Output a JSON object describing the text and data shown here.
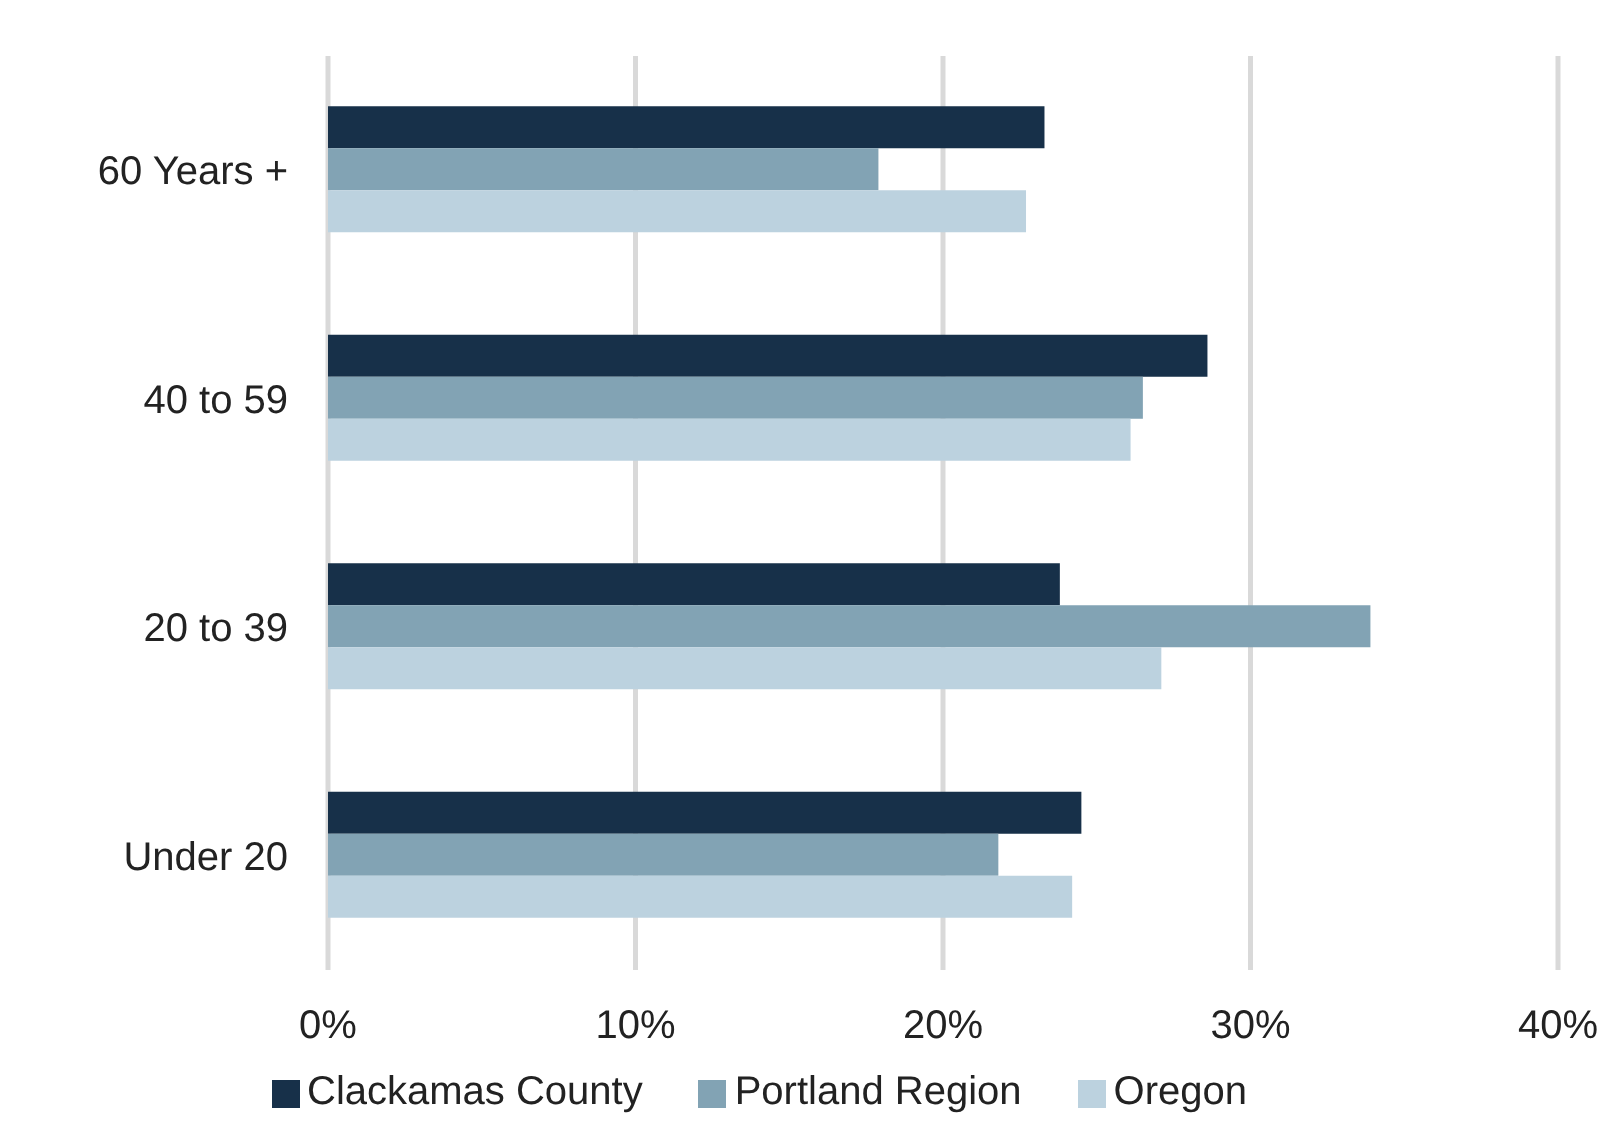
{
  "chart_data": {
    "type": "bar",
    "orientation": "horizontal",
    "categories": [
      "60 Years +",
      "40 to 59",
      "20 to 39",
      "Under 20"
    ],
    "series": [
      {
        "name": "Clackamas County",
        "color": "#173049",
        "values": [
          23.3,
          28.6,
          23.8,
          24.5
        ]
      },
      {
        "name": "Portland Region",
        "color": "#82a3b4",
        "values": [
          17.9,
          26.5,
          33.9,
          21.8
        ]
      },
      {
        "name": "Oregon",
        "color": "#bcd2df",
        "values": [
          22.7,
          26.1,
          27.1,
          24.2
        ]
      }
    ],
    "xlim": [
      0,
      40
    ],
    "xticks": [
      {
        "value": 0,
        "label": "0%"
      },
      {
        "value": 10,
        "label": "10%"
      },
      {
        "value": 20,
        "label": "20%"
      },
      {
        "value": 30,
        "label": "30%"
      },
      {
        "value": 40,
        "label": "40%"
      }
    ],
    "grid": "x",
    "legend": "bottom"
  }
}
